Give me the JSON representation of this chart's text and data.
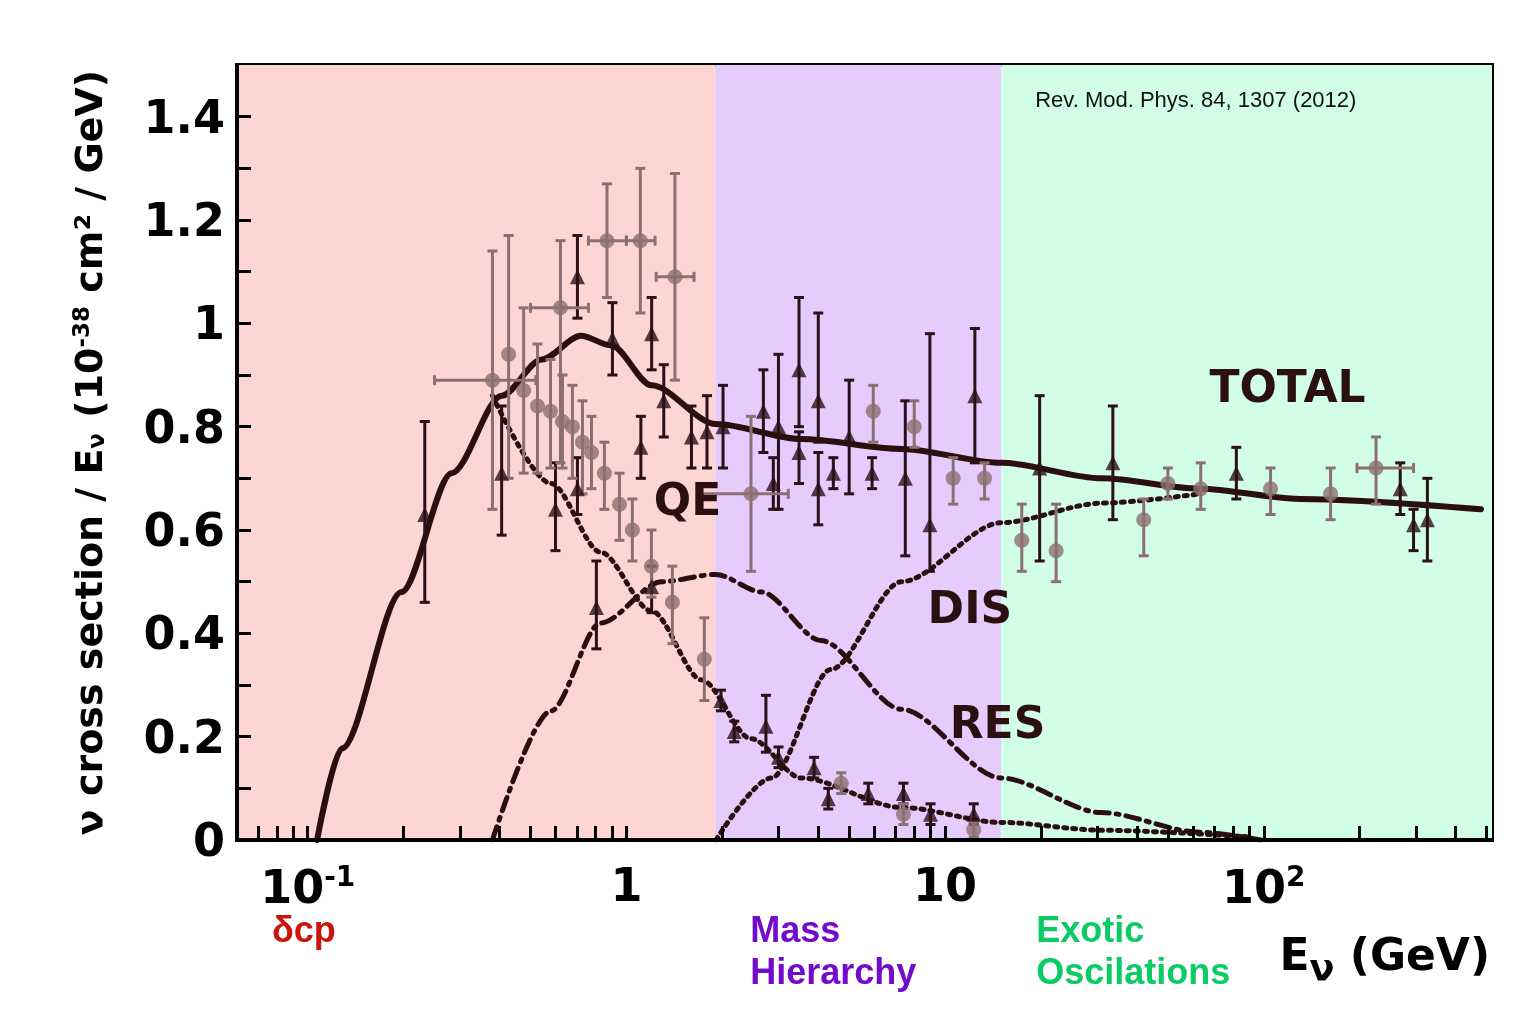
{
  "chart_data": {
    "type": "line",
    "xlabel": "E$_{ν}$ (GeV)",
    "ylabel": "ν cross section / E$_{ν}$ (10$^{-38}$ cm² / GeV)",
    "log": "x",
    "xlim": [
      0.06,
      520
    ],
    "ylim": [
      0,
      1.5
    ],
    "xticks": [
      {
        "value": 0.07,
        "label": null
      },
      {
        "value": 0.08,
        "label": null
      },
      {
        "value": 0.09,
        "label": null
      },
      {
        "value": 0.1,
        "label": "10$^{-1}$"
      },
      {
        "value": 0.2,
        "label": null
      },
      {
        "value": 0.3,
        "label": null
      },
      {
        "value": 0.4,
        "label": null
      },
      {
        "value": 0.5,
        "label": null
      },
      {
        "value": 0.6,
        "label": null
      },
      {
        "value": 0.7,
        "label": null
      },
      {
        "value": 0.8,
        "label": null
      },
      {
        "value": 0.9,
        "label": null
      },
      1,
      {
        "value": 2,
        "label": null
      },
      {
        "value": 3,
        "label": null
      },
      {
        "value": 4,
        "label": null
      },
      {
        "value": 5,
        "label": null
      },
      {
        "value": 6,
        "label": null
      },
      {
        "value": 7,
        "label": null
      },
      {
        "value": 8,
        "label": null
      },
      {
        "value": 9,
        "label": null
      },
      10,
      {
        "value": 20,
        "label": null
      },
      {
        "value": 30,
        "label": null
      },
      {
        "value": 40,
        "label": null
      },
      {
        "value": 50,
        "label": null
      },
      {
        "value": 60,
        "label": null
      },
      {
        "value": 70,
        "label": null
      },
      {
        "value": 80,
        "label": null
      },
      {
        "value": 90,
        "label": null
      },
      {
        "value": 100,
        "label": "10$^{2}$"
      },
      {
        "value": 200,
        "label": null
      },
      {
        "value": 300,
        "label": null
      },
      {
        "value": 400,
        "label": null
      },
      {
        "value": 500,
        "label": null
      }
    ],
    "yticks": [
      0,
      {
        "value": 0.1,
        "label": null
      },
      0.2,
      {
        "value": 0.3,
        "label": null
      },
      0.4,
      {
        "value": 0.5,
        "label": null
      },
      0.6,
      {
        "value": 0.7,
        "label": null
      },
      0.8,
      {
        "value": 0.9,
        "label": null
      },
      1,
      {
        "value": 1.1,
        "label": null
      },
      1.2,
      {
        "value": 1.3,
        "label": null
      },
      1.4
    ],
    "bands": [
      {
        "axis": "x",
        "from": 0.06,
        "to": 1.9,
        "label": "δcp",
        "color": "#fdd5d3"
      },
      {
        "axis": "x",
        "from": 1.9,
        "to": 15,
        "label": "Mass Hierarchy",
        "color": "#e6cbfd"
      },
      {
        "axis": "x",
        "from": 15,
        "to": 520,
        "label": "Exotic Oscilations",
        "color": "#d2fde6"
      }
    ],
    "annotations": [
      "Rev. Mod. Phys. 84, 1307 (2012)",
      "TOTAL",
      "QE",
      "DIS",
      "RES"
    ],
    "series": [
      {
        "line_style": "solid",
        "color": "#2b0f0f",
        "x": [
          0.107,
          0.128,
          0.197,
          0.283,
          0.406,
          0.542,
          0.72,
          0.897,
          1.2,
          1.91,
          3.54,
          7.3,
          15,
          31,
          63,
          130,
          480
        ],
        "values": [
          0,
          0.177,
          0.48,
          0.71,
          0.86,
          0.93,
          0.976,
          0.957,
          0.88,
          0.805,
          0.776,
          0.757,
          0.73,
          0.7,
          0.68,
          0.66,
          0.64
        ]
      },
      {
        "line_style": "dotted",
        "color": "#2b0f0f",
        "x": [
          0.38,
          0.58,
          0.83,
          1.2,
          1.72,
          2.46,
          3.54,
          7.3,
          15,
          31,
          90
        ],
        "values": [
          0.86,
          0.69,
          0.557,
          0.443,
          0.31,
          0.196,
          0.12,
          0.063,
          0.034,
          0.019,
          0.006
        ]
      },
      {
        "line_style": "dashed",
        "color": "#2b0f0f",
        "x": [
          0.38,
          0.58,
          0.83,
          1.29,
          1.91,
          2.65,
          4.08,
          7.3,
          15,
          31,
          63,
          98
        ],
        "values": [
          0,
          0.25,
          0.42,
          0.5,
          0.514,
          0.48,
          0.386,
          0.253,
          0.12,
          0.053,
          0.015,
          0
        ]
      },
      {
        "line_style": "dotted",
        "color": "#2b0f0f",
        "x": [
          1.91,
          2.85,
          4.38,
          7.3,
          15,
          31,
          63
        ],
        "values": [
          0,
          0.12,
          0.33,
          0.5,
          0.614,
          0.652,
          0.67
        ]
      },
      {
        "type": "scatter",
        "marker": "triangle",
        "color": "#2b1018",
        "x": [
          0.233,
          0.406,
          0.599,
          0.702,
          0.702,
          0.904,
          1.2,
          1.31,
          1.11,
          1.6,
          1.79,
          0.805,
          1.2,
          2.01,
          2.69,
          2.89,
          3.0,
          3.48,
          3.48,
          4.0,
          4.0,
          4.46,
          5.0,
          5.9,
          7.5,
          8.96,
          12.4,
          19.8,
          33.6,
          82,
          268,
          295,
          326,
          1.98,
          2.18,
          2.74,
          3.0,
          3.88,
          4.3,
          5.74,
          7.4,
          9.0,
          12.3
        ],
        "values": [
          0.63,
          0.71,
          0.64,
          1.09,
          0.68,
          0.97,
          0.98,
          0.85,
          0.76,
          0.78,
          0.79,
          0.45,
          0.49,
          0.8,
          0.83,
          0.69,
          0.8,
          0.91,
          0.75,
          0.85,
          0.68,
          0.71,
          0.78,
          0.71,
          0.7,
          0.61,
          0.86,
          0.72,
          0.73,
          0.71,
          0.68,
          0.61,
          0.62,
          0.27,
          0.21,
          0.22,
          0.16,
          0.14,
          0.08,
          0.09,
          0.09,
          0.05,
          0.05
        ],
        "errors": [
          [
            0.46,
            0.81
          ],
          [
            0.59,
            0.84
          ],
          [
            0.56,
            0.73
          ],
          [
            1.01,
            1.17
          ],
          [
            0.63,
            0.74
          ],
          [
            0.9,
            1.04
          ],
          [
            0.91,
            1.05
          ],
          [
            0.78,
            0.92
          ],
          [
            0.7,
            0.82
          ],
          [
            0.72,
            0.84
          ],
          [
            0.72,
            0.86
          ],
          [
            0.37,
            0.54
          ],
          [
            0.44,
            0.53
          ],
          [
            0.72,
            0.88
          ],
          [
            0.75,
            0.91
          ],
          [
            0.64,
            0.74
          ],
          [
            0.64,
            0.94
          ],
          [
            0.8,
            1.05
          ],
          [
            0.69,
            0.79
          ],
          [
            0.77,
            1.02
          ],
          [
            0.61,
            0.75
          ],
          [
            0.68,
            0.74
          ],
          [
            0.67,
            0.89
          ],
          [
            0.68,
            0.74
          ],
          [
            0.55,
            0.85
          ],
          [
            0.52,
            0.98
          ],
          [
            0.73,
            0.99
          ],
          [
            0.54,
            0.86
          ],
          [
            0.62,
            0.84
          ],
          [
            0.66,
            0.76
          ],
          [
            0.63,
            0.73
          ],
          [
            0.56,
            0.64
          ],
          [
            0.54,
            0.7
          ],
          0.02,
          0.02,
          [
            0.17,
            0.28
          ],
          0.02,
          0.02,
          0.02,
          0.02,
          0.02,
          0.02,
          0.02
        ]
      },
      {
        "type": "scatter",
        "marker": "circle",
        "color": "#8c6f72",
        "x": [
          0.38,
          0.427,
          0.476,
          0.621,
          0.526,
          0.578,
          0.63,
          0.677,
          0.728,
          0.777,
          0.853,
          0.951,
          1.044,
          1.198,
          1.394,
          1.756,
          0.869,
          1.106,
          1.42,
          2.46,
          5.95,
          8.0,
          10.6,
          13.3,
          17.4,
          22.3,
          42,
          50,
          63.4,
          105,
          162,
          225,
          4.72,
          7.4,
          12.3
        ],
        "values": [
          0.89,
          0.94,
          0.87,
          1.03,
          0.84,
          0.83,
          0.81,
          0.8,
          0.77,
          0.75,
          0.71,
          0.65,
          0.6,
          0.53,
          0.46,
          0.35,
          1.16,
          1.16,
          1.09,
          0.67,
          0.83,
          0.8,
          0.7,
          0.7,
          0.58,
          0.56,
          0.62,
          0.69,
          0.68,
          0.68,
          0.67,
          0.72,
          0.11,
          0.05,
          0.02
        ],
        "errors": [
          [
            0.64,
            1.14
          ],
          [
            0.7,
            1.17
          ],
          [
            0.71,
            1.03
          ],
          [
            0.73,
            1.16
          ],
          [
            0.71,
            0.96
          ],
          [
            0.72,
            0.93
          ],
          [
            0.72,
            0.9
          ],
          [
            0.7,
            0.88
          ],
          [
            0.67,
            0.85
          ],
          [
            0.68,
            0.82
          ],
          [
            0.64,
            0.77
          ],
          [
            0.58,
            0.71
          ],
          [
            0.54,
            0.66
          ],
          [
            0.47,
            0.6
          ],
          [
            0.38,
            0.53
          ],
          [
            0.27,
            0.43
          ],
          [
            1.05,
            1.27
          ],
          [
            1.02,
            1.3
          ],
          [
            0.89,
            1.29
          ],
          [
            0.52,
            0.82
          ],
          [
            0.77,
            0.88
          ],
          [
            0.76,
            0.85
          ],
          [
            0.65,
            0.74
          ],
          [
            0.66,
            0.73
          ],
          [
            0.52,
            0.65
          ],
          [
            0.5,
            0.65
          ],
          [
            0.55,
            0.66
          ],
          [
            0.66,
            0.72
          ],
          [
            0.64,
            0.73
          ],
          [
            0.63,
            0.72
          ],
          [
            0.62,
            0.72
          ],
          [
            0.65,
            0.78
          ],
          0.02,
          0.02,
          0.015
        ],
        "xerrors": [
          [
            0.25,
            0.52
          ],
          null,
          null,
          [
            0.5,
            0.76
          ],
          null,
          null,
          null,
          null,
          null,
          null,
          null,
          null,
          null,
          null,
          null,
          null,
          [
            0.76,
            1.0
          ],
          [
            1.0,
            1.23
          ],
          [
            1.24,
            1.63
          ],
          [
            1.72,
            3.22
          ],
          null,
          null,
          null,
          null,
          null,
          null,
          null,
          null,
          null,
          null,
          null,
          [
            196,
            295
          ],
          null,
          null,
          null
        ]
      }
    ]
  }
}
